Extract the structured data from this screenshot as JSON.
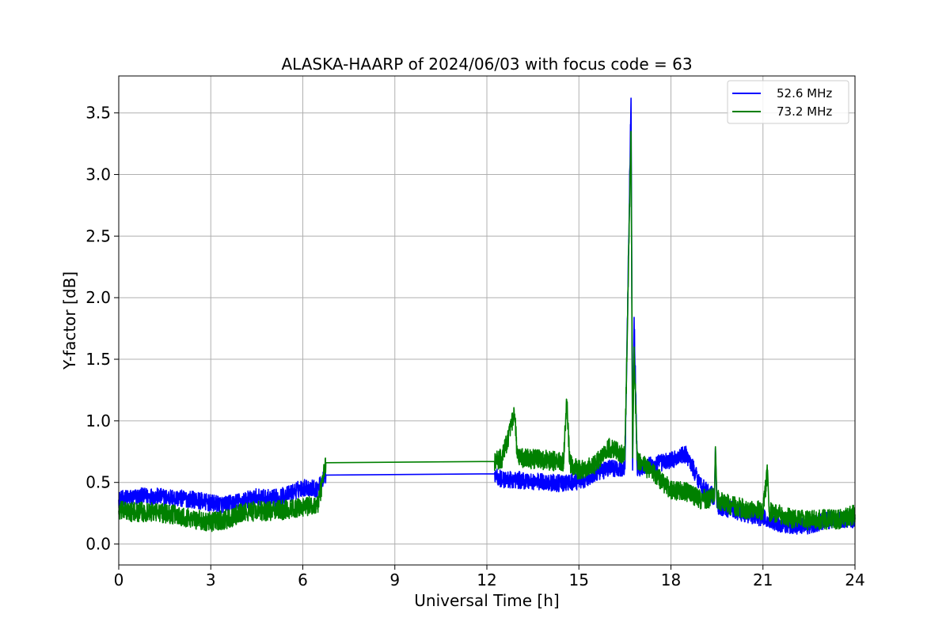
{
  "chart_data": {
    "type": "line",
    "title": "ALASKA-HAARP of 2024/06/03 with focus code = 63",
    "xlabel": "Universal Time [h]",
    "ylabel": "Y-factor [dB]",
    "xlim": [
      0,
      24
    ],
    "ylim": [
      -0.17,
      3.8
    ],
    "xticks": [
      0,
      3,
      6,
      9,
      12,
      15,
      18,
      21,
      24
    ],
    "xtick_labels": [
      "0",
      "3",
      "6",
      "9",
      "12",
      "15",
      "18",
      "21",
      "24"
    ],
    "yticks": [
      0.0,
      0.5,
      1.0,
      1.5,
      2.0,
      2.5,
      3.0,
      3.5
    ],
    "ytick_labels": [
      "0.0",
      "0.5",
      "1.0",
      "1.5",
      "2.0",
      "2.5",
      "3.0",
      "3.5"
    ],
    "grid": true,
    "legend_position": "top-right",
    "series": [
      {
        "name": "52.6 MHz",
        "color": "#0000ff",
        "noise_amplitude": 0.07,
        "x": [
          0.0,
          0.5,
          1.0,
          1.5,
          2.0,
          2.5,
          3.0,
          3.5,
          4.0,
          4.5,
          5.0,
          5.5,
          6.0,
          6.5,
          6.75,
          12.25,
          12.5,
          13.0,
          13.5,
          14.0,
          14.5,
          15.0,
          15.5,
          16.0,
          16.5,
          16.7,
          16.75,
          16.8,
          16.9,
          17.0,
          17.5,
          18.0,
          18.5,
          19.0,
          19.42,
          19.45,
          19.5,
          20.0,
          20.5,
          21.0,
          21.5,
          22.0,
          22.5,
          23.0,
          23.5,
          24.0
        ],
        "y": [
          0.36,
          0.38,
          0.39,
          0.38,
          0.37,
          0.36,
          0.33,
          0.32,
          0.35,
          0.38,
          0.37,
          0.4,
          0.46,
          0.45,
          0.56,
          0.57,
          0.52,
          0.52,
          0.51,
          0.5,
          0.49,
          0.51,
          0.56,
          0.62,
          0.61,
          3.62,
          0.6,
          1.84,
          0.62,
          0.62,
          0.65,
          0.68,
          0.73,
          0.47,
          0.38,
          0.78,
          0.3,
          0.28,
          0.24,
          0.21,
          0.17,
          0.15,
          0.15,
          0.19,
          0.2,
          0.2
        ]
      },
      {
        "name": "73.2 MHz",
        "color": "#008000",
        "noise_amplitude": 0.08,
        "x": [
          0.0,
          0.5,
          1.0,
          1.5,
          2.0,
          2.5,
          3.0,
          3.5,
          4.0,
          4.5,
          5.0,
          5.5,
          6.0,
          6.5,
          6.75,
          12.25,
          12.5,
          12.9,
          13.0,
          13.5,
          14.0,
          14.5,
          14.6,
          14.7,
          15.0,
          15.5,
          16.0,
          16.5,
          16.7,
          16.75,
          16.8,
          16.9,
          17.0,
          17.5,
          18.0,
          18.5,
          19.0,
          19.42,
          19.45,
          19.5,
          20.0,
          20.5,
          21.0,
          21.15,
          21.2,
          21.5,
          22.0,
          22.5,
          23.0,
          23.5,
          24.0
        ],
        "y": [
          0.27,
          0.26,
          0.26,
          0.25,
          0.23,
          0.2,
          0.18,
          0.2,
          0.25,
          0.27,
          0.27,
          0.28,
          0.3,
          0.32,
          0.66,
          0.67,
          0.7,
          1.05,
          0.7,
          0.69,
          0.68,
          0.66,
          1.17,
          0.65,
          0.6,
          0.64,
          0.78,
          0.72,
          3.35,
          0.7,
          1.6,
          0.68,
          0.66,
          0.56,
          0.44,
          0.42,
          0.36,
          0.38,
          0.79,
          0.36,
          0.31,
          0.28,
          0.27,
          0.6,
          0.26,
          0.24,
          0.2,
          0.19,
          0.2,
          0.2,
          0.24
        ]
      }
    ]
  }
}
